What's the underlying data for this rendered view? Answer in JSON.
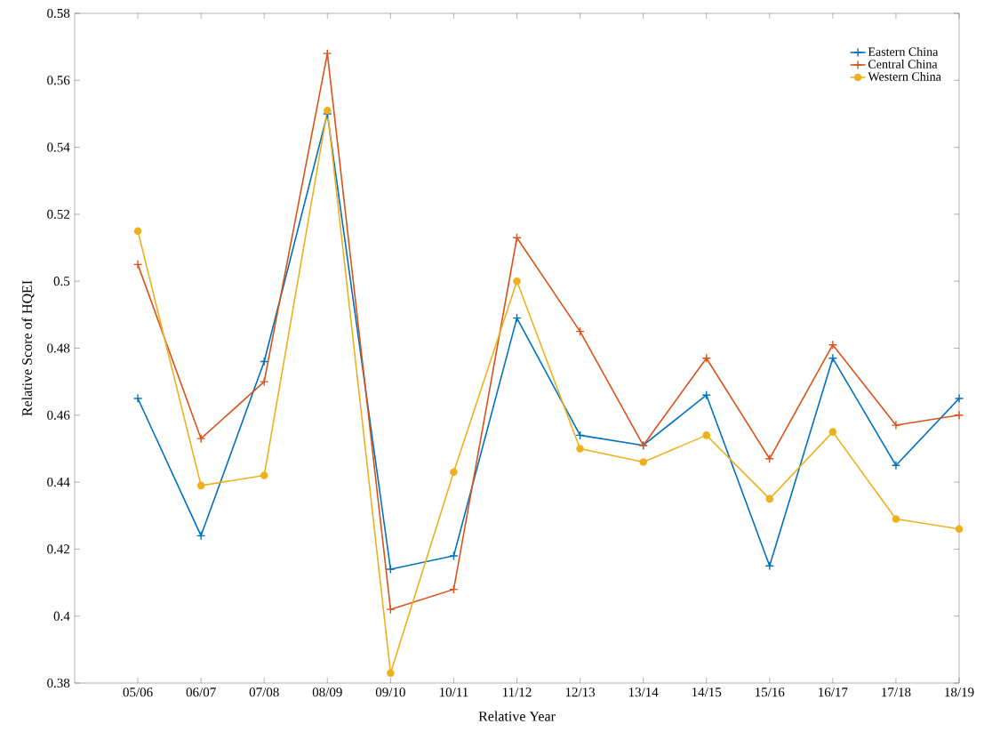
{
  "chart_data": {
    "type": "line",
    "xlabel": "Relative Year",
    "ylabel": "Relative Score of HQEI",
    "categories": [
      "05/06",
      "06/07",
      "07/08",
      "08/09",
      "09/10",
      "10/11",
      "11/12",
      "12/13",
      "13/14",
      "14/15",
      "15/16",
      "16/17",
      "17/18",
      "18/19"
    ],
    "series": [
      {
        "name": "Eastern China",
        "color": "#0072bd",
        "marker": "cross",
        "values": [
          0.465,
          0.424,
          0.476,
          0.55,
          0.414,
          0.418,
          0.489,
          0.454,
          0.451,
          0.466,
          0.415,
          0.477,
          0.445,
          0.465
        ]
      },
      {
        "name": "Central China",
        "color": "#d95319",
        "marker": "cross",
        "values": [
          0.505,
          0.453,
          0.47,
          0.568,
          0.402,
          0.408,
          0.513,
          0.485,
          0.451,
          0.477,
          0.447,
          0.481,
          0.457,
          0.46
        ]
      },
      {
        "name": "Western China",
        "color": "#edb120",
        "marker": "circle",
        "values": [
          0.515,
          0.439,
          0.442,
          0.551,
          0.383,
          0.443,
          0.5,
          0.45,
          0.446,
          0.454,
          0.435,
          0.455,
          0.429,
          0.426
        ]
      }
    ],
    "ylim": [
      0.38,
      0.58
    ],
    "yticks": [
      0.38,
      0.4,
      0.42,
      0.44,
      0.46,
      0.48,
      0.5,
      0.52,
      0.54,
      0.56,
      0.58
    ],
    "grid": false,
    "legend": "top right",
    "line_style": "solid"
  }
}
